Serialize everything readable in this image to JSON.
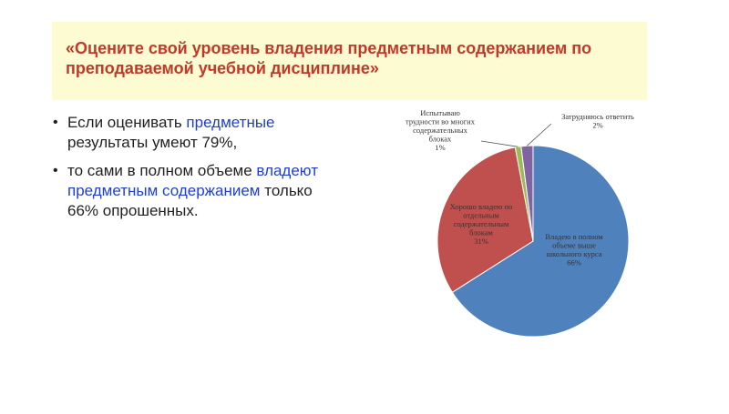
{
  "title": "«Оцените свой уровень владения предметным содержанием по преподаваемой учебной дисциплине»",
  "bullets": {
    "item1": {
      "part1": "Если оценивать ",
      "part2": "предметные",
      "part3": " результаты умеют 79%,"
    },
    "item2": {
      "part1": "то сами в полном объеме ",
      "part2": "владеют предметным содержанием",
      "part3": " только 66% опрошенных."
    }
  },
  "colors": {
    "title": "#c0392b",
    "highlight": "#1f3fd0",
    "band": "#fdfbd1"
  },
  "chart_data": {
    "type": "pie",
    "slices": [
      {
        "label_lines": [
          "Владею в полном",
          "объеме выше",
          "школьного курса",
          "66%"
        ],
        "value": 66,
        "color": "#4f81bd"
      },
      {
        "label_lines": [
          "Хорошо владею по",
          "отдельным",
          "содержательным",
          "блокам",
          "31%"
        ],
        "value": 31,
        "color": "#c0504d"
      },
      {
        "label_lines": [
          "Испытываю",
          "трудности во многих",
          "содержательных",
          "блоках",
          "1%"
        ],
        "value": 1,
        "color": "#9bbb59"
      },
      {
        "label_lines": [
          "Затрудняюсь ответить",
          "2%"
        ],
        "value": 2,
        "color": "#8064a2"
      }
    ]
  }
}
